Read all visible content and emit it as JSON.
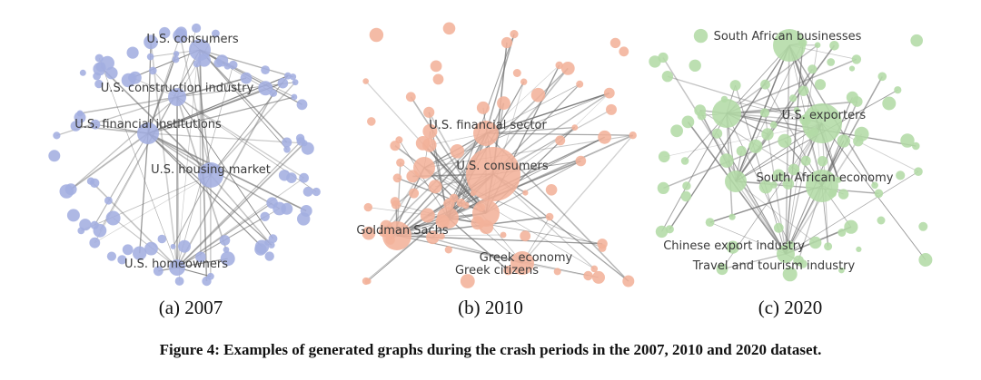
{
  "figure": {
    "panels": [
      {
        "id": "a",
        "subcaption": "(a) 2007",
        "color": "#a3aee0",
        "seed": 7,
        "edges": 80,
        "labels": [
          "U.S. consumers",
          "U.S. construction industry",
          "U.S. financial institutions",
          "U.S. housing market",
          "U.S. homeowners"
        ]
      },
      {
        "id": "b",
        "subcaption": "(b) 2010",
        "color": "#f3b29a",
        "seed": 10,
        "edges": 110,
        "labels": [
          "U.S. financial sector",
          "U.S. consumers",
          "Goldman Sachs",
          "Greek economy",
          "Greek citizens"
        ]
      },
      {
        "id": "c",
        "subcaption": "(c) 2020",
        "color": "#b3dba6",
        "seed": 20,
        "edges": 95,
        "labels": [
          "South African businesses",
          "U.S. exporters",
          "South African economy",
          "Chinese export industry",
          "Travel and tourism industry"
        ]
      }
    ],
    "caption": "Figure 4: Examples of generated graphs during the crash periods in the 2007, 2010 and 2020 dataset."
  }
}
